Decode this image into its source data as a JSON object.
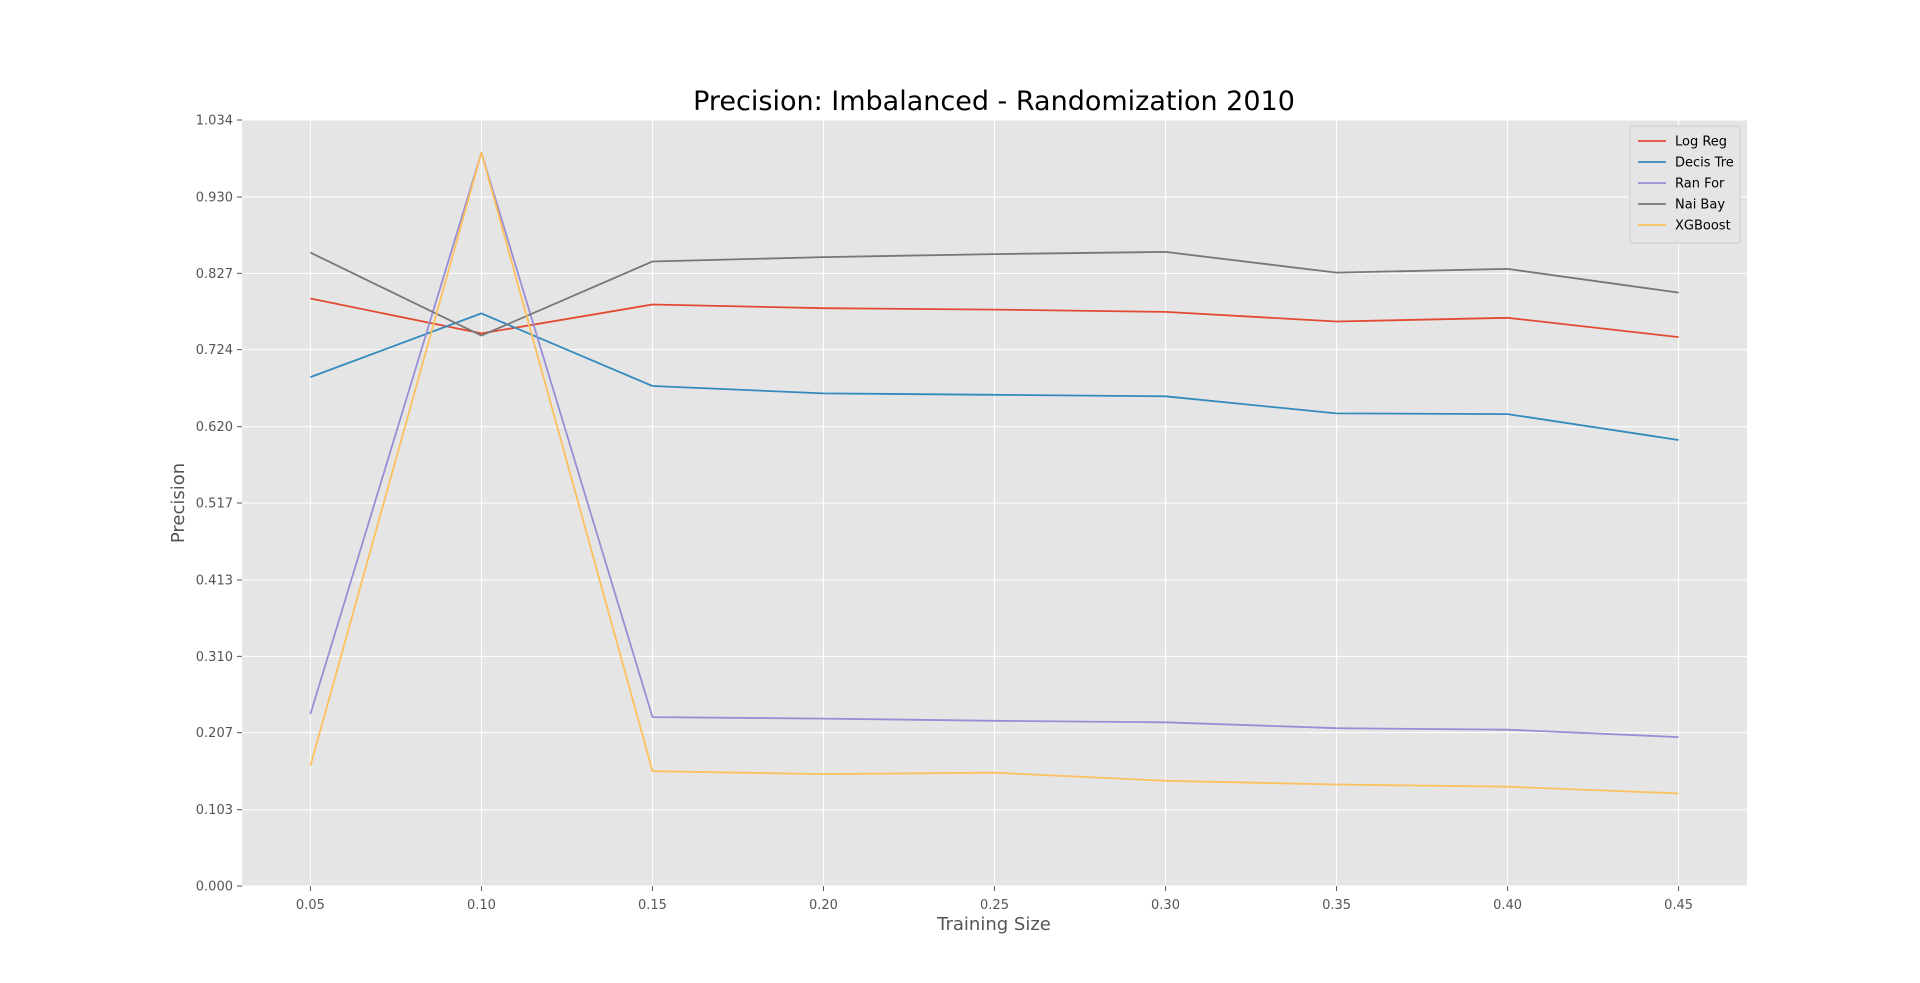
{
  "chart_data": {
    "type": "line",
    "title": "Precision: Imbalanced - Randomization 2010",
    "xlabel": "Training Size",
    "ylabel": "Precision",
    "x": [
      0.05,
      0.1,
      0.15,
      0.2,
      0.25,
      0.3,
      0.35,
      0.4,
      0.45
    ],
    "x_tick_labels": [
      "0.05",
      "0.10",
      "0.15",
      "0.20",
      "0.25",
      "0.30",
      "0.35",
      "0.40",
      "0.45"
    ],
    "xlim": [
      0.03,
      0.47
    ],
    "ylim": [
      0.0,
      1.034
    ],
    "y_ticks": [
      0.0,
      0.103,
      0.207,
      0.31,
      0.413,
      0.517,
      0.62,
      0.724,
      0.827,
      0.93,
      1.034
    ],
    "y_tick_labels": [
      "0.000",
      "0.103",
      "0.207",
      "0.310",
      "0.413",
      "0.517",
      "0.620",
      "0.724",
      "0.827",
      "0.930",
      "1.034"
    ],
    "grid": true,
    "legend_position": "top-right",
    "series": [
      {
        "name": "Log Reg",
        "color": "#E24A33",
        "values": [
          0.793,
          0.746,
          0.785,
          0.78,
          0.778,
          0.775,
          0.762,
          0.767,
          0.741
        ]
      },
      {
        "name": "Decis Tre",
        "color": "#348ABD",
        "values": [
          0.687,
          0.773,
          0.675,
          0.665,
          0.663,
          0.661,
          0.638,
          0.637,
          0.602
        ]
      },
      {
        "name": "Ran For",
        "color": "#988ED5",
        "values": [
          0.232,
          0.99,
          0.228,
          0.226,
          0.223,
          0.221,
          0.213,
          0.211,
          0.201
        ]
      },
      {
        "name": "Nai Bay",
        "color": "#777777",
        "values": [
          0.855,
          0.743,
          0.843,
          0.849,
          0.853,
          0.856,
          0.828,
          0.833,
          0.801
        ]
      },
      {
        "name": "XGBoost",
        "color": "#FBC15E",
        "values": [
          0.162,
          0.99,
          0.155,
          0.151,
          0.153,
          0.142,
          0.137,
          0.134,
          0.125
        ]
      }
    ]
  }
}
